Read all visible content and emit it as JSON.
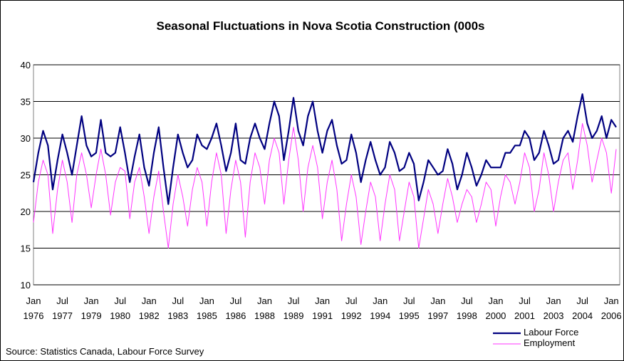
{
  "chart_data": {
    "type": "line",
    "title": "Seasonal Fluctuations in Nova Scotia Construction (000s",
    "source": "Source:  Statistics Canada, Labour Force Survey",
    "categories": [
      "Jan 1976",
      null,
      null,
      null,
      null,
      null,
      "Jul 1977",
      null,
      null,
      null,
      null,
      null,
      "Jan 1979",
      null,
      null,
      null,
      null,
      null,
      "Jul 1980",
      null,
      null,
      null,
      null,
      null,
      "Jan 1982",
      null,
      null,
      null,
      null,
      null,
      "Jul 1983",
      null,
      null,
      null,
      null,
      null,
      "Jan 1985",
      null,
      null,
      null,
      null,
      null,
      "Jul 1986",
      null,
      null,
      null,
      null,
      null,
      "Jan 1988",
      null,
      null,
      null,
      null,
      null,
      "Jul 1989",
      null,
      null,
      null,
      null,
      null,
      "Jan 1991",
      null,
      null,
      null,
      null,
      null,
      "Jul 1992",
      null,
      null,
      null,
      null,
      null,
      "Jan 1994",
      null,
      null,
      null,
      null,
      null,
      "Jul 1995",
      null,
      null,
      null,
      null,
      null,
      "Jan 1997",
      null,
      null,
      null,
      null,
      null,
      "Jul 1998",
      null,
      null,
      null,
      null,
      null,
      "Jan 2000",
      null,
      null,
      null,
      null,
      null,
      "Jul 2001",
      null,
      null,
      null,
      null,
      null,
      "Jan 2003",
      null,
      null,
      null,
      null,
      null,
      "Jul 2004",
      null,
      null,
      null,
      null,
      null,
      "Jan 2006",
      null
    ],
    "series": [
      {
        "name": "Labour Force",
        "color": "#000080",
        "width": 2.2,
        "values": [
          24,
          28,
          31,
          29,
          23,
          27,
          30.5,
          28,
          25,
          29,
          33,
          29,
          27.5,
          28,
          32.5,
          28,
          27.5,
          28,
          31.5,
          28,
          24,
          27.5,
          30.5,
          26,
          23.5,
          28,
          31.5,
          26,
          21,
          26,
          30.5,
          28,
          26,
          27,
          30.5,
          29,
          28.5,
          30,
          32,
          29,
          25.5,
          28,
          32,
          27,
          26.5,
          30,
          32,
          30,
          28.5,
          32,
          35,
          33,
          27,
          31,
          35.5,
          31,
          29,
          33,
          35,
          31,
          28,
          31,
          32.5,
          29,
          26.5,
          27,
          30.5,
          28,
          24,
          27,
          29.5,
          27,
          25,
          26,
          29.5,
          28,
          25.5,
          26,
          28,
          26.5,
          21.5,
          24,
          27,
          26,
          25,
          25.5,
          28.5,
          26.5,
          23,
          25,
          28,
          26,
          23.5,
          25,
          27,
          26,
          26,
          26,
          28,
          28,
          29,
          29,
          31,
          30,
          27,
          28,
          31,
          29,
          26.5,
          27,
          30,
          31,
          29.5,
          33,
          36,
          32,
          30,
          31,
          33,
          30,
          32.5,
          31.5
        ]
      },
      {
        "name": "Employment",
        "color": "#ff33ff",
        "width": 1,
        "values": [
          18.5,
          24,
          27,
          25,
          17,
          23,
          27,
          24,
          18.5,
          25,
          28,
          25,
          20.5,
          25,
          28.5,
          25,
          19.5,
          24,
          26,
          25.5,
          19,
          24,
          26,
          22,
          17,
          22,
          25.5,
          20,
          15,
          21,
          25,
          22,
          18,
          23,
          26,
          24,
          18,
          24,
          28,
          25,
          17,
          23,
          27,
          24,
          16.5,
          24,
          28,
          26,
          21,
          27,
          30,
          28,
          21,
          27,
          31.5,
          27,
          20,
          26,
          29,
          26,
          19,
          24,
          27,
          23,
          16,
          21,
          25,
          22,
          15.5,
          20,
          24,
          22,
          16,
          21,
          25,
          23,
          16,
          20,
          24,
          22,
          15,
          19,
          23,
          21,
          17,
          21,
          24.5,
          22,
          18.5,
          21,
          23,
          22,
          18.5,
          21,
          24,
          23,
          18,
          22,
          25,
          24,
          21,
          24,
          28,
          26,
          20,
          23,
          28,
          25,
          20,
          24,
          27,
          28,
          23,
          27,
          32,
          29,
          24,
          27,
          30,
          28,
          22.5,
          28.5
        ]
      }
    ],
    "ylim": [
      10,
      40
    ],
    "yticks": [
      10,
      15,
      20,
      25,
      30,
      35,
      40
    ],
    "grid": true,
    "legend": "bottom-right"
  }
}
